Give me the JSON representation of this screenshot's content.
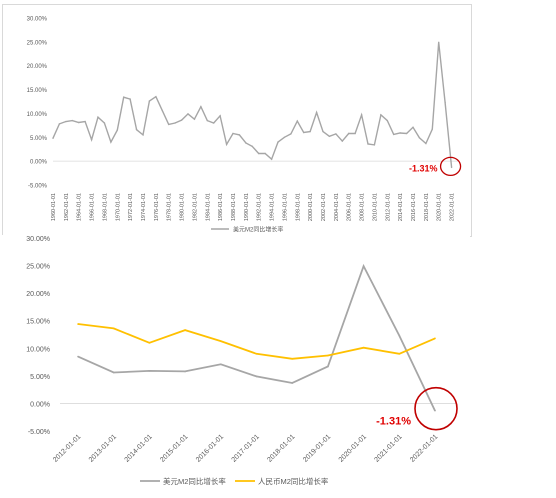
{
  "colors": {
    "usd": "#a6a6a6",
    "cny": "#ffc000",
    "annot": "#c00000",
    "grid": "#e6e6e6",
    "text": "#595959"
  },
  "chart_data": [
    {
      "type": "line",
      "title": "",
      "xlabel": "",
      "ylabel": "",
      "ylim": [
        -5,
        30
      ],
      "yticks": [
        -5,
        0,
        5,
        10,
        15,
        20,
        25,
        30
      ],
      "ytick_labels": [
        "-5.00%",
        "0.00%",
        "5.00%",
        "10.00%",
        "15.00%",
        "20.00%",
        "25.00%",
        "30.00%"
      ],
      "xlim": [
        1960,
        2023
      ],
      "xticks": [
        1960,
        1962,
        1964,
        1966,
        1968,
        1970,
        1972,
        1974,
        1976,
        1978,
        1980,
        1982,
        1984,
        1986,
        1988,
        1990,
        1992,
        1994,
        1996,
        1998,
        2000,
        2002,
        2004,
        2006,
        2008,
        2010,
        2012,
        2014,
        2016,
        2018,
        2020,
        2022
      ],
      "xtick_labels": [
        "1960-01-01",
        "1962-01-01",
        "1964-01-01",
        "1966-01-01",
        "1968-01-01",
        "1970-01-01",
        "1972-01-01",
        "1974-01-01",
        "1976-01-01",
        "1978-01-01",
        "1980-01-01",
        "1982-01-01",
        "1984-01-01",
        "1986-01-01",
        "1988-01-01",
        "1990-01-01",
        "1992-01-01",
        "1994-01-01",
        "1996-01-01",
        "1998-01-01",
        "2000-01-01",
        "2002-01-01",
        "2004-01-01",
        "2006-01-01",
        "2008-01-01",
        "2010-01-01",
        "2012-01-01",
        "2014-01-01",
        "2016-01-01",
        "2018-01-01",
        "2020-01-01",
        "2022-01-01"
      ],
      "legend_position": "bottom",
      "series": [
        {
          "name": "美元M2同比增长率",
          "x": [
            1960,
            1961,
            1962,
            1963,
            1964,
            1965,
            1966,
            1967,
            1968,
            1969,
            1970,
            1971,
            1972,
            1973,
            1974,
            1975,
            1976,
            1977,
            1978,
            1979,
            1980,
            1981,
            1982,
            1983,
            1984,
            1985,
            1986,
            1987,
            1988,
            1989,
            1990,
            1991,
            1992,
            1993,
            1994,
            1995,
            1996,
            1997,
            1998,
            1999,
            2000,
            2001,
            2002,
            2003,
            2004,
            2005,
            2006,
            2007,
            2008,
            2009,
            2010,
            2011,
            2012,
            2013,
            2014,
            2015,
            2016,
            2017,
            2018,
            2019,
            2020,
            2021,
            2022
          ],
          "values": [
            4.8,
            7.8,
            8.3,
            8.5,
            8.1,
            8.3,
            4.5,
            9.2,
            8.0,
            4.0,
            6.5,
            13.4,
            13.0,
            6.6,
            5.5,
            12.6,
            13.5,
            10.6,
            7.7,
            8.0,
            8.6,
            9.9,
            8.8,
            11.4,
            8.5,
            8.0,
            9.5,
            3.5,
            5.8,
            5.5,
            3.8,
            3.1,
            1.6,
            1.6,
            0.4,
            4.0,
            5.0,
            5.7,
            8.4,
            6.0,
            6.2,
            10.2,
            6.2,
            5.2,
            5.7,
            4.2,
            5.8,
            5.8,
            9.7,
            3.6,
            3.4,
            9.7,
            8.5,
            5.6,
            5.9,
            5.8,
            7.1,
            4.9,
            3.7,
            6.7,
            24.9,
            12.3,
            -1.31
          ]
        }
      ],
      "annotations": [
        {
          "text": "-1.31%",
          "x": 2022,
          "y": -1.31
        }
      ]
    },
    {
      "type": "line",
      "title": "",
      "xlabel": "",
      "ylabel": "",
      "ylim": [
        -5,
        30
      ],
      "yticks": [
        -5,
        0,
        5,
        10,
        15,
        20,
        25,
        30
      ],
      "ytick_labels": [
        "-5.00%",
        "0.00%",
        "5.00%",
        "10.00%",
        "15.00%",
        "20.00%",
        "25.00%",
        "30.00%"
      ],
      "categories": [
        "2012-01-01",
        "2013-01-01",
        "2014-01-01",
        "2015-01-01",
        "2016-01-01",
        "2017-01-01",
        "2018-01-01",
        "2019-01-01",
        "2020-01-01",
        "2021-01-01",
        "2022-01-01"
      ],
      "legend_position": "bottom",
      "series": [
        {
          "name": "美元M2同比增长率",
          "values": [
            8.5,
            5.6,
            5.9,
            5.8,
            7.1,
            4.9,
            3.7,
            6.7,
            24.9,
            12.3,
            -1.31
          ]
        },
        {
          "name": "人民币M2同比增长率",
          "values": [
            14.4,
            13.6,
            11.0,
            13.3,
            11.3,
            9.0,
            8.1,
            8.7,
            10.1,
            9.0,
            11.8
          ]
        }
      ],
      "annotations": [
        {
          "text": "-1.31%",
          "x": "2022-01-01",
          "y": -1.31
        }
      ]
    }
  ]
}
